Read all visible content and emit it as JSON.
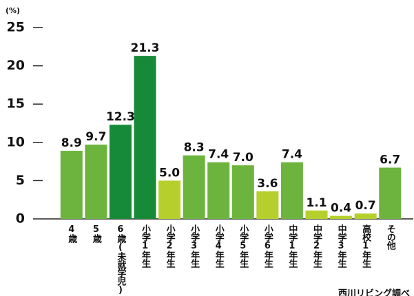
{
  "chart_data": {
    "type": "bar",
    "unit_label": "(%)",
    "categories": [
      "4歳",
      "5歳",
      "6歳(未就学児)",
      "小学1年生",
      "小学2年生",
      "小学3年生",
      "小学4年生",
      "小学5年生",
      "小学6年生",
      "中学1年生",
      "中学2年生",
      "中学3年生",
      "高校1年生",
      "その他"
    ],
    "values": [
      8.9,
      9.7,
      12.3,
      21.3,
      5.0,
      8.3,
      7.4,
      7.0,
      3.6,
      7.4,
      1.1,
      0.4,
      0.7,
      6.7
    ],
    "value_labels": [
      "8.9",
      "9.7",
      "12.3",
      "21.3",
      "5.0",
      "8.3",
      "7.4",
      "7.0",
      "3.6",
      "7.4",
      "1.1",
      "0.4",
      "0.7",
      "6.7"
    ],
    "colors": [
      "#6db43e",
      "#6db43e",
      "#178a3a",
      "#178a3a",
      "#b7cf2c",
      "#6db43e",
      "#6db43e",
      "#6db43e",
      "#b7cf2c",
      "#6db43e",
      "#b7cf2c",
      "#b7cf2c",
      "#b7cf2c",
      "#6db43e"
    ],
    "ylim": [
      0,
      25
    ],
    "yticks": [
      0,
      5,
      10,
      15,
      20,
      25
    ],
    "source": "西川リビング調べ"
  }
}
